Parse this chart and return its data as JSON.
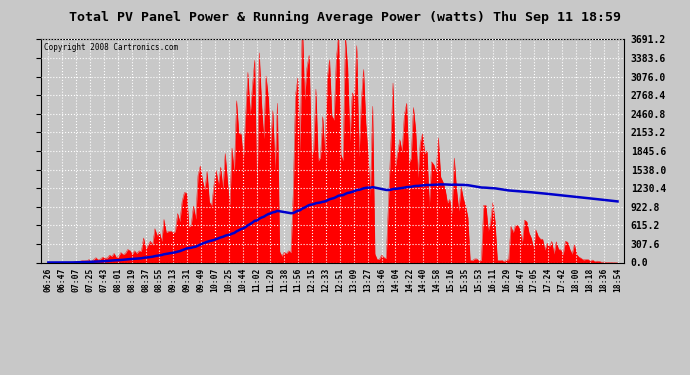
{
  "title": "Total PV Panel Power & Running Average Power (watts) Thu Sep 11 18:59",
  "copyright": "Copyright 2008 Cartronics.com",
  "ylabel_values": [
    0.0,
    307.6,
    615.2,
    922.8,
    1230.4,
    1538.0,
    1845.6,
    2153.2,
    2460.8,
    2768.4,
    3076.0,
    3383.6,
    3691.2
  ],
  "ymax": 3691.2,
  "ymin": 0.0,
  "bar_color": "#FF0000",
  "avg_color": "#0000CC",
  "background_color": "#FFFFFF",
  "grid_color": "#FFFFFF",
  "x_labels": [
    "06:26",
    "06:47",
    "07:07",
    "07:25",
    "07:43",
    "08:01",
    "08:19",
    "08:37",
    "08:55",
    "09:13",
    "09:31",
    "09:49",
    "10:07",
    "10:25",
    "10:44",
    "11:02",
    "11:20",
    "11:38",
    "11:56",
    "12:15",
    "12:33",
    "12:51",
    "13:09",
    "13:27",
    "13:46",
    "14:04",
    "14:22",
    "14:40",
    "14:58",
    "15:16",
    "15:35",
    "15:53",
    "16:11",
    "16:29",
    "16:47",
    "17:05",
    "17:24",
    "17:42",
    "18:00",
    "18:18",
    "18:36",
    "18:54"
  ]
}
